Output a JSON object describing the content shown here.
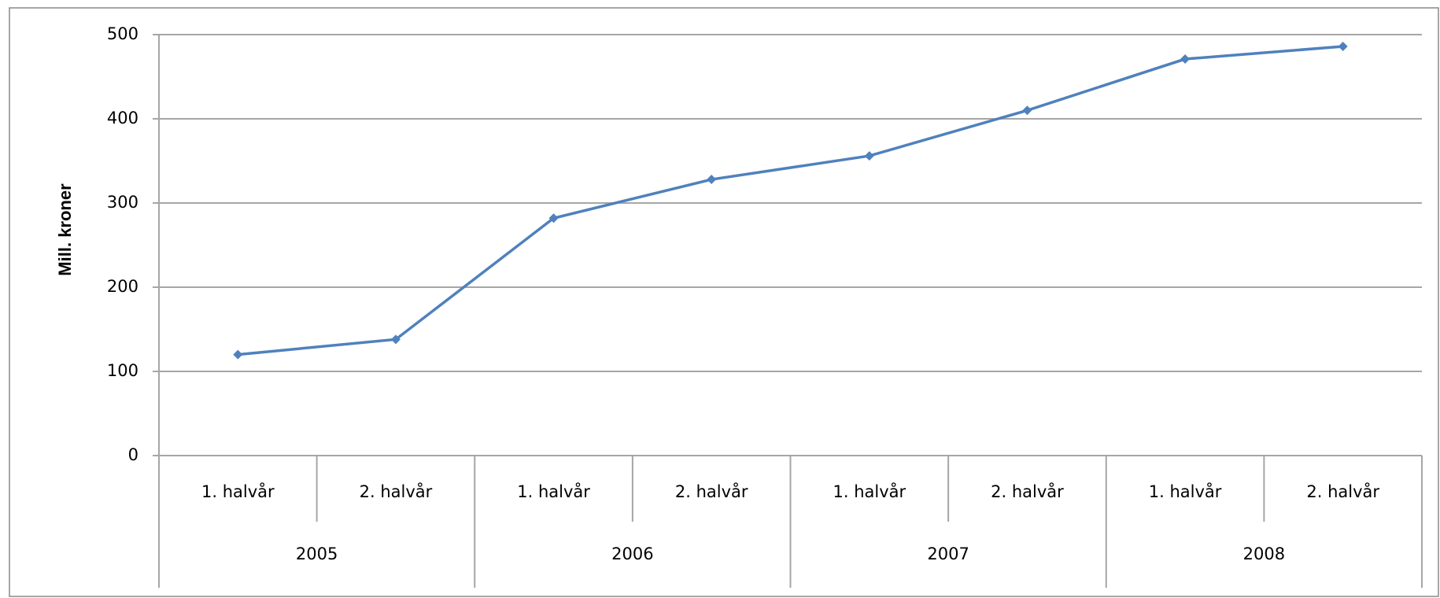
{
  "chart_data": {
    "type": "line",
    "ylabel": "Mill. kroner",
    "categories": [
      "1. halvår",
      "2. halvår",
      "1. halvår",
      "2. halvår",
      "1. halvår",
      "2. halvår",
      "1. halvår",
      "2. halvår"
    ],
    "groups": [
      "2005",
      "2006",
      "2007",
      "2008"
    ],
    "series": [
      {
        "name": "Mill. kroner",
        "color": "#4f81bd",
        "values": [
          120,
          138,
          282,
          328,
          356,
          410,
          471,
          486
        ]
      }
    ],
    "ylim": [
      0,
      500
    ],
    "yticks": [
      0,
      100,
      200,
      300,
      400,
      500
    ],
    "grid": true
  }
}
